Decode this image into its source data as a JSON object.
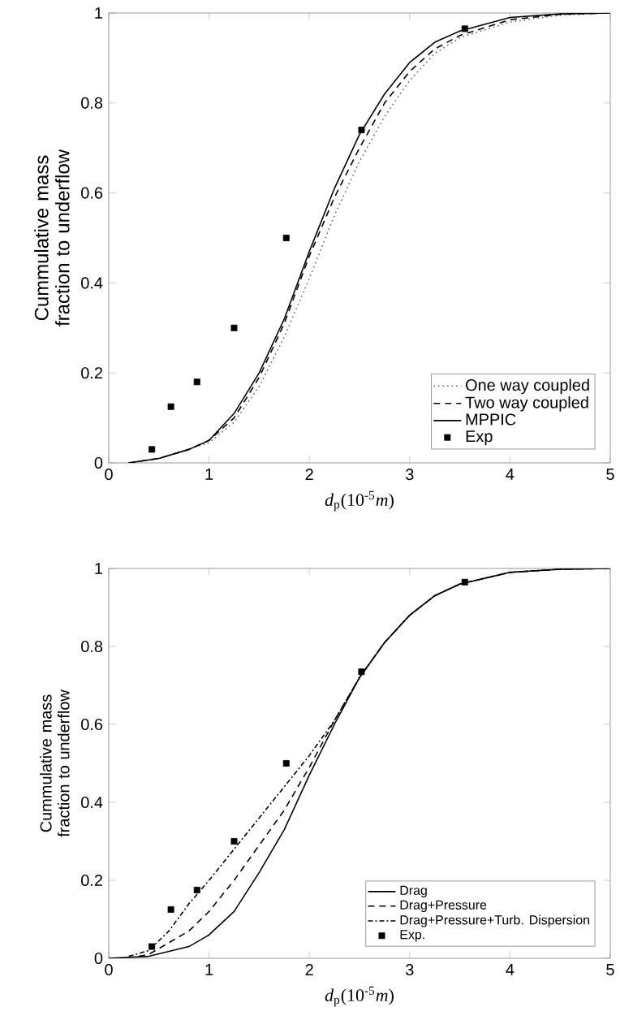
{
  "chart_data": [
    {
      "type": "line",
      "xlabel": "*d*$_{p}$(10$^{-5}$*m*)",
      "ylabel": "Cummulative mass fraction to underflow",
      "xlim": [
        0,
        5
      ],
      "ylim": [
        0,
        1
      ],
      "xticks": [
        0,
        1,
        2,
        3,
        4,
        5
      ],
      "yticks": [
        0,
        0.2,
        0.4,
        0.6,
        0.8,
        1
      ],
      "legend": "bottom right",
      "grid": false,
      "series": [
        {
          "name": "One way coupled",
          "color": "#666666",
          "line_style": "dotted",
          "marker": "none",
          "x": [
            0.2,
            0.5,
            0.8,
            1.0,
            1.25,
            1.5,
            1.75,
            2.0,
            2.25,
            2.5,
            2.75,
            3.0,
            3.25,
            3.5,
            4.0,
            4.5,
            5.0
          ],
          "values": [
            0,
            0.01,
            0.03,
            0.045,
            0.09,
            0.17,
            0.28,
            0.41,
            0.55,
            0.67,
            0.77,
            0.85,
            0.91,
            0.945,
            0.98,
            0.995,
            1
          ]
        },
        {
          "name": "Two way coupled",
          "color": "#000000",
          "line_style": "dashed",
          "marker": "none",
          "x": [
            0.2,
            0.5,
            0.8,
            1.0,
            1.25,
            1.5,
            1.75,
            2.0,
            2.25,
            2.5,
            2.75,
            3.0,
            3.25,
            3.5,
            4.0,
            4.5,
            5.0
          ],
          "values": [
            0,
            0.01,
            0.03,
            0.05,
            0.1,
            0.19,
            0.31,
            0.46,
            0.59,
            0.7,
            0.8,
            0.87,
            0.92,
            0.95,
            0.985,
            0.997,
            1
          ]
        },
        {
          "name": "MPPIC",
          "color": "#000000",
          "line_style": "solid",
          "marker": "none",
          "x": [
            0.2,
            0.5,
            0.8,
            1.0,
            1.25,
            1.5,
            1.75,
            2.0,
            2.25,
            2.5,
            2.75,
            3.0,
            3.25,
            3.5,
            4.0,
            4.5,
            5.0
          ],
          "values": [
            0,
            0.01,
            0.03,
            0.05,
            0.11,
            0.2,
            0.32,
            0.47,
            0.61,
            0.73,
            0.82,
            0.89,
            0.935,
            0.96,
            0.99,
            0.998,
            1
          ]
        },
        {
          "name": "Exp",
          "type": "scatter",
          "color": "#000000",
          "marker": "square",
          "x": [
            0.43,
            0.62,
            0.88,
            1.25,
            1.77,
            2.52,
            3.55
          ],
          "values": [
            0.03,
            0.125,
            0.18,
            0.3,
            0.5,
            0.74,
            0.965
          ]
        }
      ]
    },
    {
      "type": "line",
      "xlabel": "*d*$_{p}$(10$^{-5}$*m*)",
      "ylabel": "Cummulative mass fraction to underflow",
      "xlim": [
        0,
        5
      ],
      "ylim": [
        0,
        1
      ],
      "xticks": [
        0,
        1,
        2,
        3,
        4,
        5
      ],
      "yticks": [
        0,
        0.2,
        0.4,
        0.6,
        0.8,
        1
      ],
      "legend": "bottom right",
      "grid": false,
      "series": [
        {
          "name": "Drag",
          "color": "#000000",
          "line_style": "solid",
          "marker": "none",
          "x": [
            0,
            0.4,
            0.8,
            1.0,
            1.25,
            1.5,
            1.75,
            2.0,
            2.25,
            2.5,
            2.75,
            3.0,
            3.25,
            3.5,
            4.0,
            4.5,
            5.0
          ],
          "values": [
            0,
            0.005,
            0.03,
            0.06,
            0.12,
            0.22,
            0.33,
            0.47,
            0.6,
            0.72,
            0.81,
            0.88,
            0.93,
            0.96,
            0.99,
            0.998,
            1
          ]
        },
        {
          "name": "Drag+Pressure",
          "color": "#000000",
          "line_style": "dashed",
          "marker": "none",
          "x": [
            0.3,
            0.4,
            0.8,
            1.0,
            1.25,
            1.5,
            1.75,
            2.0,
            2.25,
            2.5,
            2.75,
            3.0,
            3.25,
            3.5,
            4.0,
            4.5,
            5.0
          ],
          "values": [
            0.005,
            0.01,
            0.07,
            0.12,
            0.2,
            0.29,
            0.38,
            0.49,
            0.61,
            0.72,
            0.81,
            0.88,
            0.93,
            0.96,
            0.99,
            0.998,
            1
          ]
        },
        {
          "name": "Drag+Pressure+Turb. Dispersion",
          "color": "#000000",
          "line_style": "dashdot",
          "marker": "none",
          "x": [
            0.2,
            0.4,
            0.6,
            0.8,
            1.0,
            1.25,
            1.5,
            1.75,
            2.0,
            2.25,
            2.5,
            2.75,
            3.0,
            3.25,
            3.5,
            4.0,
            4.5,
            5.0
          ],
          "values": [
            0.005,
            0.02,
            0.07,
            0.14,
            0.2,
            0.28,
            0.36,
            0.44,
            0.52,
            0.61,
            0.72,
            0.81,
            0.88,
            0.93,
            0.96,
            0.99,
            0.998,
            1
          ]
        },
        {
          "name": "Exp.",
          "type": "scatter",
          "color": "#000000",
          "marker": "square",
          "x": [
            0.43,
            0.62,
            0.88,
            1.25,
            1.77,
            2.52,
            3.55
          ],
          "values": [
            0.03,
            0.125,
            0.175,
            0.3,
            0.5,
            0.735,
            0.965
          ]
        }
      ]
    }
  ]
}
